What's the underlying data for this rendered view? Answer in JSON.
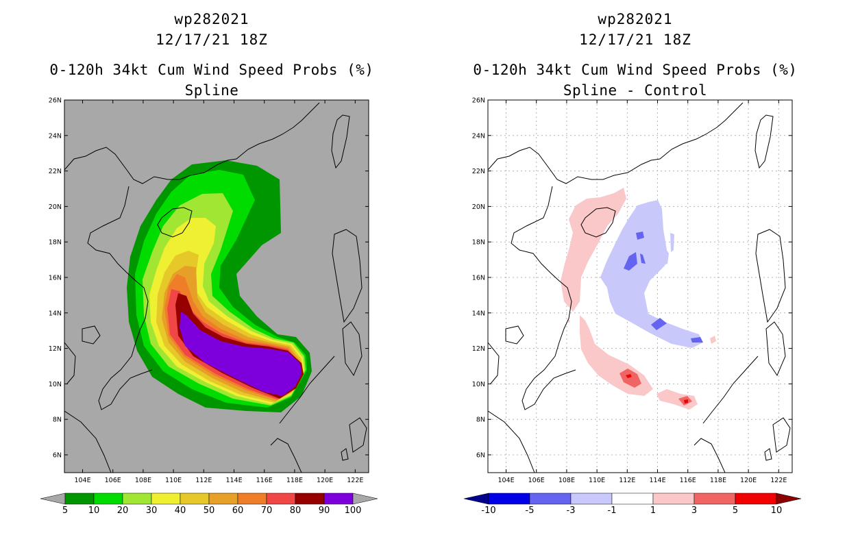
{
  "panels": [
    {
      "storm_id": "wp282021",
      "datetime": "12/17/21 18Z",
      "title": "0-120h 34kt Cum Wind Speed Probs (%)",
      "subtitle": "Spline",
      "colorbar": {
        "levels": [
          "5",
          "10",
          "20",
          "30",
          "40",
          "50",
          "60",
          "70",
          "80",
          "90",
          "100"
        ],
        "colors": [
          "#a8a8a8",
          "#009600",
          "#00dc00",
          "#a0e632",
          "#f0f032",
          "#e6c828",
          "#e6a028",
          "#f07d28",
          "#f04646",
          "#960000",
          "#7d00dc",
          "#a8a8a8"
        ]
      }
    },
    {
      "storm_id": "wp282021",
      "datetime": "12/17/21 18Z",
      "title": "0-120h 34kt Cum Wind Speed Probs (%)",
      "subtitle": "Spline - Control",
      "colorbar": {
        "levels": [
          "-10",
          "-5",
          "-3",
          "-1",
          "1",
          "3",
          "5",
          "10"
        ],
        "colors": [
          "#00008c",
          "#0000e6",
          "#6464f0",
          "#c8c8fa",
          "#ffffff",
          "#fac8c8",
          "#f06464",
          "#f00000",
          "#8c0000"
        ]
      }
    }
  ],
  "axes": {
    "lat_labels": [
      "26N",
      "24N",
      "22N",
      "20N",
      "18N",
      "16N",
      "14N",
      "12N",
      "10N",
      "8N",
      "6N"
    ],
    "lon_labels": [
      "104E",
      "106E",
      "108E",
      "110E",
      "112E",
      "114E",
      "116E",
      "118E",
      "120E",
      "122E"
    ],
    "lat_values": [
      26,
      24,
      22,
      20,
      18,
      16,
      14,
      12,
      10,
      8,
      6
    ],
    "lon_values": [
      104,
      106,
      108,
      110,
      112,
      114,
      116,
      118,
      120,
      122
    ]
  }
}
